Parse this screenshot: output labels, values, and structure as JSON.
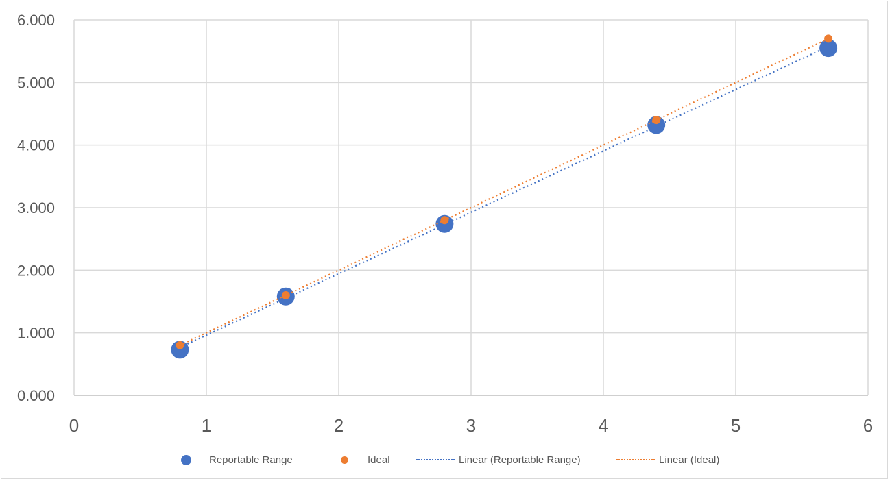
{
  "chart_data": {
    "type": "scatter",
    "title": "",
    "xlabel": "",
    "ylabel": "",
    "xlim": [
      0,
      6
    ],
    "ylim": [
      0,
      6
    ],
    "x_ticks": [
      "0",
      "1",
      "2",
      "3",
      "4",
      "5",
      "6"
    ],
    "y_ticks": [
      "0.000",
      "1.000",
      "2.000",
      "3.000",
      "4.000",
      "5.000",
      "6.000"
    ],
    "grid": true,
    "legend_position": "bottom",
    "series": [
      {
        "name": "Reportable Range",
        "color": "#4472c4",
        "marker": "circle-large",
        "points": [
          [
            0.8,
            0.73
          ],
          [
            1.6,
            1.58
          ],
          [
            2.8,
            2.74
          ],
          [
            4.4,
            4.32
          ],
          [
            5.7,
            5.55
          ]
        ]
      },
      {
        "name": "Ideal",
        "color": "#ed7d31",
        "marker": "circle-small",
        "points": [
          [
            0.8,
            0.8
          ],
          [
            1.6,
            1.6
          ],
          [
            2.8,
            2.8
          ],
          [
            4.4,
            4.4
          ],
          [
            5.7,
            5.7
          ]
        ]
      }
    ],
    "trendlines": [
      {
        "name": "Linear (Reportable Range)",
        "series": "Reportable Range",
        "type": "linear",
        "style": "dotted",
        "color": "#4472c4"
      },
      {
        "name": "Linear (Ideal)",
        "series": "Ideal",
        "type": "linear",
        "style": "dotted",
        "color": "#ed7d31"
      }
    ]
  },
  "legend": {
    "items": [
      {
        "label": "Reportable Range",
        "kind": "marker-big",
        "color": "#4472c4"
      },
      {
        "label": "Ideal",
        "kind": "marker-small",
        "color": "#ed7d31"
      },
      {
        "label": "Linear (Reportable Range)",
        "kind": "dotline",
        "color": "#4472c4"
      },
      {
        "label": "Linear (Ideal)",
        "kind": "dotline",
        "color": "#ed7d31"
      }
    ]
  }
}
